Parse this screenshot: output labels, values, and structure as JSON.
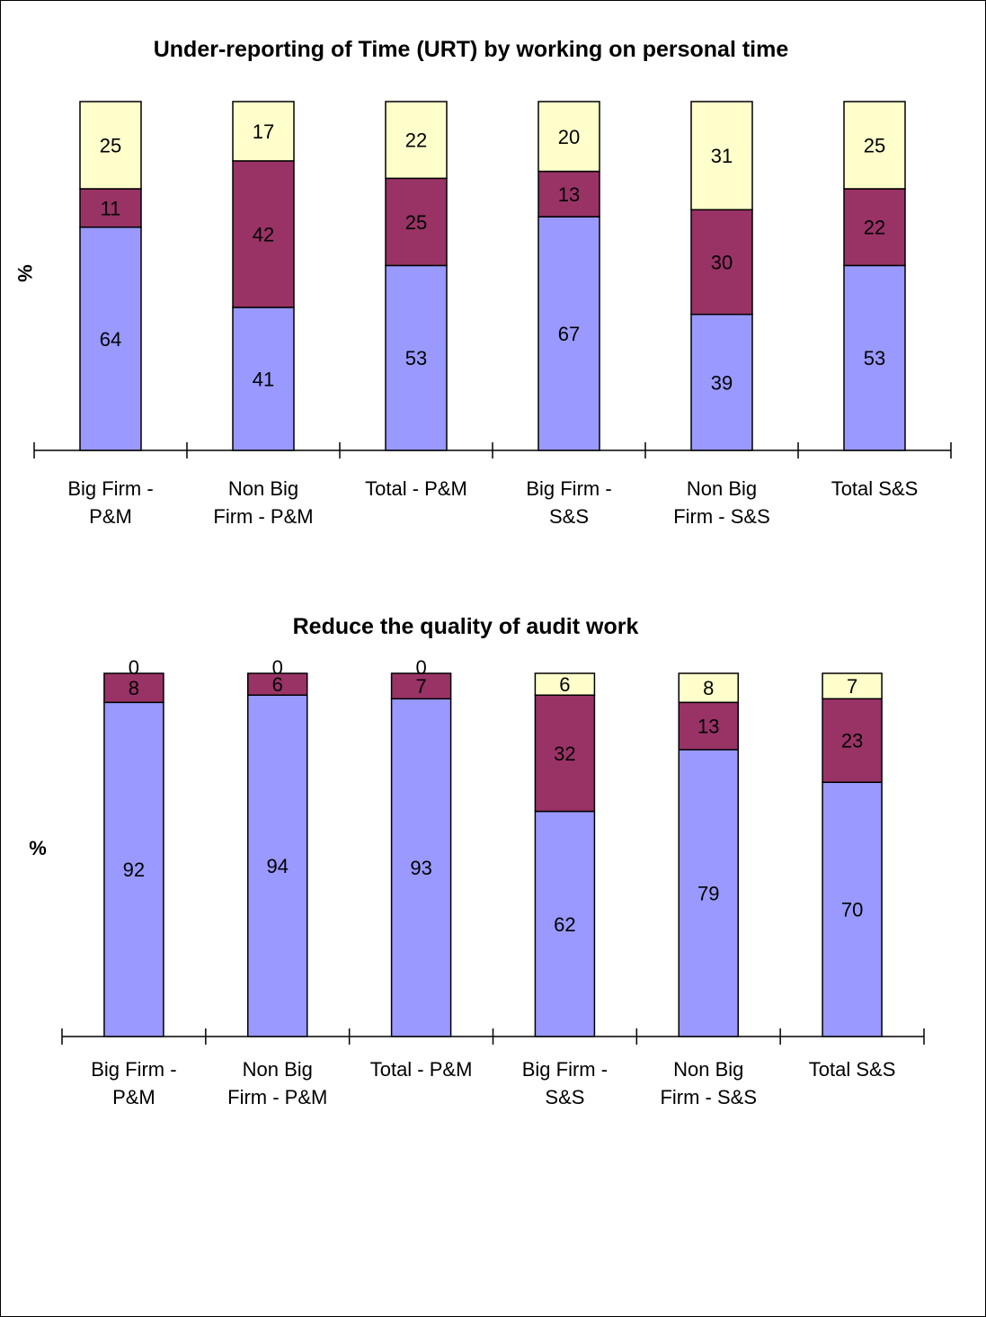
{
  "chart_data": [
    {
      "type": "bar",
      "stacked": true,
      "title": "Under-reporting of Time (URT) by working on personal time",
      "ylabel": "%",
      "ylim": [
        0,
        100
      ],
      "grid": false,
      "legend": "none",
      "categories": [
        [
          "Big Firm -",
          "P&M"
        ],
        [
          "Non Big",
          "Firm - P&M"
        ],
        [
          "Total - P&M"
        ],
        [
          "Big Firm -",
          "S&S"
        ],
        [
          "Non Big",
          "Firm - S&S"
        ],
        [
          "Total S&S"
        ]
      ],
      "series": [
        {
          "color": "#9999ff",
          "values": [
            64,
            41,
            53,
            67,
            39,
            53
          ]
        },
        {
          "color": "#993366",
          "values": [
            11,
            42,
            25,
            13,
            30,
            22
          ]
        },
        {
          "color": "#ffffcc",
          "values": [
            25,
            17,
            22,
            20,
            31,
            25
          ]
        }
      ]
    },
    {
      "type": "bar",
      "stacked": true,
      "title": "Reduce the quality of audit work",
      "ylabel": "%",
      "ylim": [
        0,
        100
      ],
      "grid": false,
      "legend": "none",
      "categories": [
        [
          "Big Firm -",
          "P&M"
        ],
        [
          "Non Big",
          "Firm - P&M"
        ],
        [
          "Total - P&M"
        ],
        [
          "Big Firm -",
          "S&S"
        ],
        [
          "Non Big",
          "Firm - S&S"
        ],
        [
          "Total S&S"
        ]
      ],
      "series": [
        {
          "color": "#9999ff",
          "values": [
            92,
            94,
            93,
            62,
            79,
            70
          ]
        },
        {
          "color": "#993366",
          "values": [
            8,
            6,
            7,
            32,
            13,
            23
          ]
        },
        {
          "color": "#ffffcc",
          "values": [
            0,
            0,
            0,
            6,
            8,
            7
          ]
        }
      ]
    }
  ]
}
